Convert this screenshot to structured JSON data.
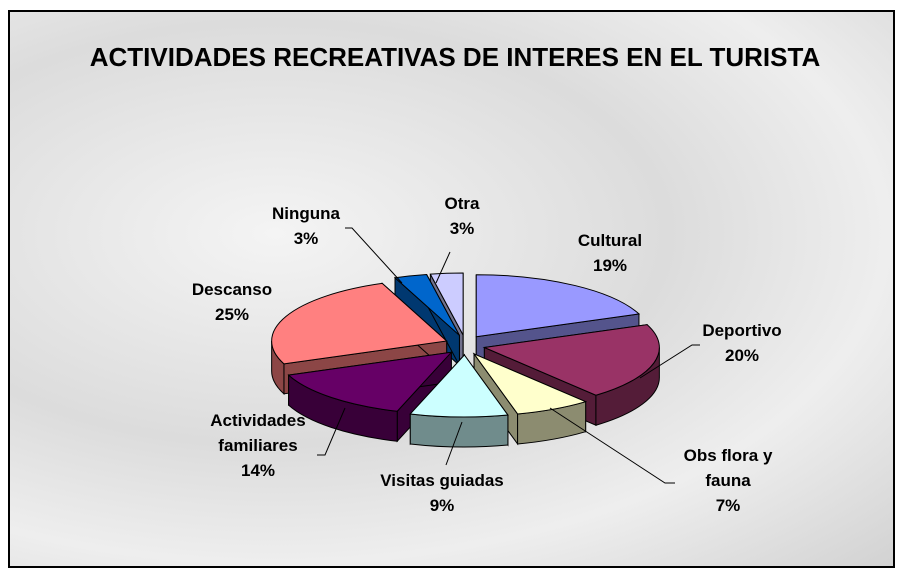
{
  "chart_data": {
    "type": "pie",
    "title": "ACTIVIDADES RECREATIVAS DE INTERES EN EL TURISTA",
    "categories": [
      "Cultural",
      "Deportivo",
      "Obs flora y fauna",
      "Visitas guiadas",
      "Actividades familiares",
      "Descanso",
      "Ninguna",
      "Otra"
    ],
    "values": [
      19,
      20,
      7,
      9,
      14,
      25,
      3,
      3
    ],
    "value_labels": [
      "19%",
      "20%",
      "7%",
      "9%",
      "14%",
      "25%",
      "3%",
      "3%"
    ],
    "colors": [
      "#9999ff",
      "#993366",
      "#ffffcc",
      "#ccffff",
      "#660066",
      "#ff8080",
      "#0066cc",
      "#ccccff"
    ]
  }
}
